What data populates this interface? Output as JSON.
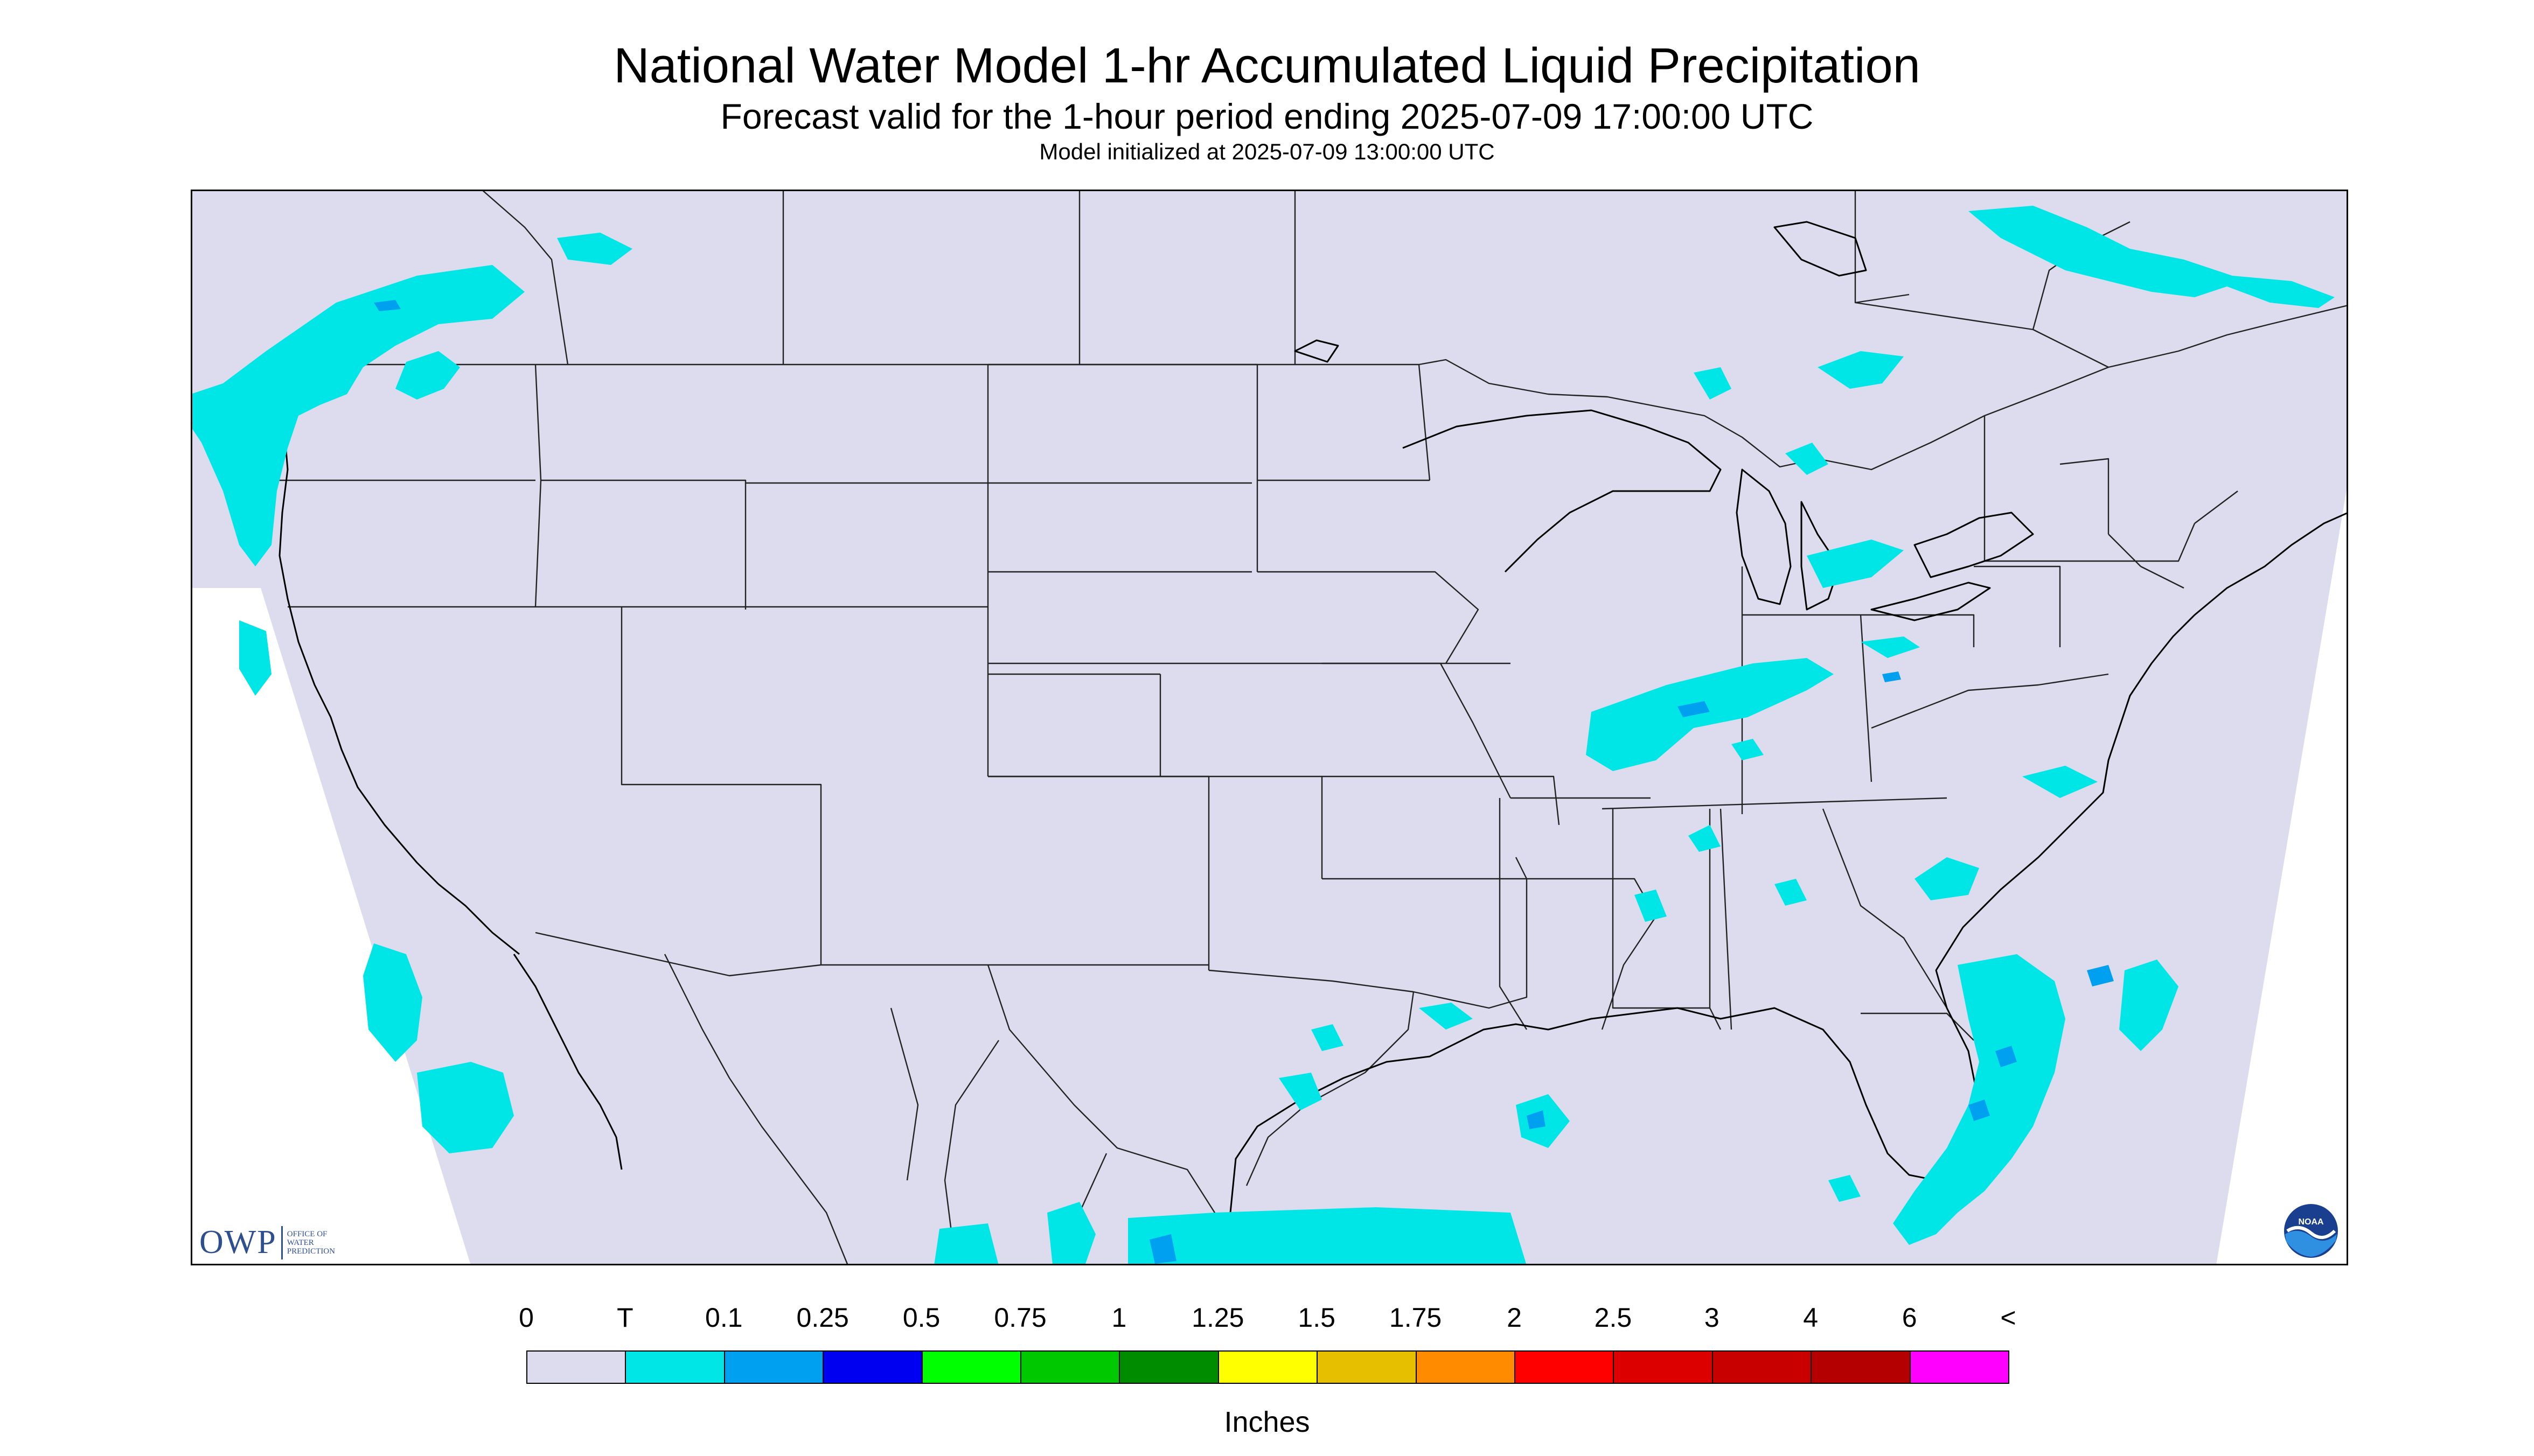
{
  "titles": {
    "main": "National Water Model 1-hr Accumulated Liquid Precipitation",
    "forecast": "Forecast valid for the 1-hour period ending 2025-07-09 17:00:00 UTC",
    "init": "Model initialized at 2025-07-09 13:00:00 UTC"
  },
  "legend": {
    "units": "Inches",
    "labels": [
      "0",
      "T",
      "0.1",
      "0.25",
      "0.5",
      "0.75",
      "1",
      "1.25",
      "1.5",
      "1.75",
      "2",
      "2.5",
      "3",
      "4",
      "6",
      "<"
    ],
    "colors": [
      "#dcdcee",
      "#00e6e6",
      "#00a0f0",
      "#0000f0",
      "#00ff00",
      "#00c800",
      "#008c00",
      "#ffff00",
      "#e6c000",
      "#ff8c00",
      "#ff0000",
      "#dc0000",
      "#c80000",
      "#b40000",
      "#ff00ff",
      "#9a55c8"
    ]
  },
  "logos": {
    "owp_mark": "OWP",
    "owp_text": [
      "OFFICE OF",
      "WATER",
      "PREDICTION"
    ],
    "noaa": "NOAA"
  },
  "colors": {
    "domain_fill": "#dcdcee",
    "trace": "#00e6e6",
    "light": "#00a0f0",
    "boundary": "#000000"
  }
}
